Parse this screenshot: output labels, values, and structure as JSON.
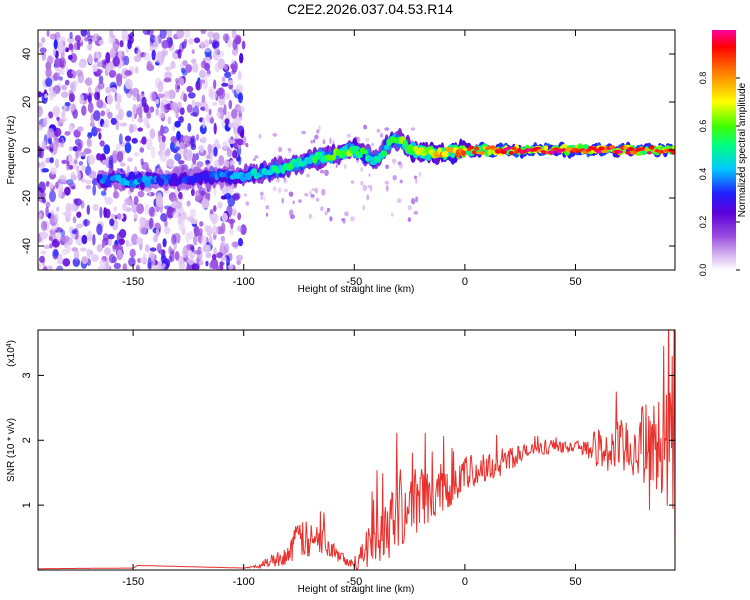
{
  "title": "C2E2.2026.037.04.53.R14",
  "chart_data": [
    {
      "type": "heatmap",
      "name": "spectrogram",
      "xlabel": "Height of straight line (km)",
      "ylabel": "Frequency (Hz)",
      "xlim": [
        -193,
        95
      ],
      "ylim": [
        -50,
        50
      ],
      "xticks": [
        -150,
        -100,
        -50,
        0,
        50
      ],
      "xtick_labels": [
        "-150",
        "-100",
        "-50",
        "0",
        "50"
      ],
      "yticks": [
        -40,
        -20,
        0,
        20,
        40
      ],
      "ytick_labels": [
        "-40",
        "-20",
        "0",
        "20",
        "40"
      ],
      "colorbar": {
        "label": "Normalized spectral amplitude",
        "range": [
          0,
          1
        ],
        "ticks": [
          0.0,
          0.2,
          0.4,
          0.6,
          0.8
        ],
        "tick_labels": [
          "0.0",
          "0.2",
          "0.4",
          "0.6",
          "0.8"
        ],
        "colors": [
          "#ffffff",
          "#d8b8f0",
          "#9a4de0",
          "#5b00d8",
          "#2020ff",
          "#00c8ff",
          "#00ff80",
          "#40ff00",
          "#ffff00",
          "#ff8000",
          "#ff0000",
          "#ff00a0"
        ]
      },
      "ridge": {
        "x": [
          -165,
          -150,
          -130,
          -110,
          -100,
          -90,
          -80,
          -70,
          -60,
          -50,
          -45,
          -40,
          -35,
          -30,
          -25,
          -20,
          -10,
          0,
          10,
          20,
          40,
          60,
          80,
          95
        ],
        "y": [
          -12,
          -13,
          -12,
          -11,
          -11,
          -9,
          -7,
          -4,
          -2,
          0,
          -2,
          -5,
          2,
          5,
          0,
          -1,
          -1,
          0,
          0,
          0,
          0,
          0,
          0,
          0
        ],
        "amplitude": [
          0.35,
          0.4,
          0.3,
          0.35,
          0.4,
          0.45,
          0.5,
          0.5,
          0.55,
          0.6,
          0.5,
          0.45,
          0.5,
          0.55,
          0.65,
          0.7,
          0.75,
          0.8,
          0.85,
          0.9,
          0.9,
          0.9,
          0.88,
          0.85
        ]
      },
      "noise_region_x": [
        -193,
        -100
      ]
    },
    {
      "type": "line",
      "name": "snr",
      "xlabel": "Height of straight line (km)",
      "ylabel": "SNR (10 * v/v)",
      "scale_label": "(x10",
      "scale_exponent": "4",
      "scale_close": ")",
      "xlim": [
        -193,
        95
      ],
      "ylim": [
        0,
        3.7
      ],
      "y_unit_multiplier": 10000,
      "xticks": [
        -150,
        -100,
        -50,
        0,
        50
      ],
      "xtick_labels": [
        "-150",
        "-100",
        "-50",
        "0",
        "50"
      ],
      "yticks": [
        1,
        2,
        3
      ],
      "ytick_labels": [
        "1",
        "2",
        "3"
      ],
      "color": "#e8302c",
      "envelope": {
        "x": [
          -193,
          -150,
          -148,
          -100,
          -95,
          -90,
          -80,
          -75,
          -70,
          -65,
          -60,
          -55,
          -50,
          -45,
          -40,
          -35,
          -30,
          -25,
          -20,
          -15,
          -10,
          -5,
          0,
          10,
          20,
          30,
          40,
          50,
          55,
          60,
          65,
          70,
          75,
          80,
          85,
          90,
          95
        ],
        "y": [
          0.02,
          0.03,
          0.07,
          0.03,
          0.05,
          0.12,
          0.25,
          0.55,
          0.45,
          0.5,
          0.4,
          0.2,
          0.08,
          0.3,
          0.55,
          0.8,
          1.0,
          1.05,
          1.15,
          1.2,
          1.3,
          1.4,
          1.5,
          1.6,
          1.75,
          1.85,
          1.9,
          1.9,
          1.92,
          1.9,
          1.88,
          1.9,
          1.95,
          2.0,
          2.0,
          2.0,
          2.0
        ],
        "jitter": [
          0.0,
          0.0,
          0.0,
          0.0,
          0.02,
          0.08,
          0.15,
          0.3,
          0.3,
          0.25,
          0.2,
          0.1,
          0.05,
          0.3,
          0.45,
          0.6,
          0.65,
          0.55,
          0.5,
          0.45,
          0.4,
          0.35,
          0.3,
          0.25,
          0.2,
          0.12,
          0.08,
          0.08,
          0.15,
          0.3,
          0.4,
          0.45,
          0.5,
          0.6,
          0.7,
          0.9,
          1.1
        ]
      }
    }
  ]
}
